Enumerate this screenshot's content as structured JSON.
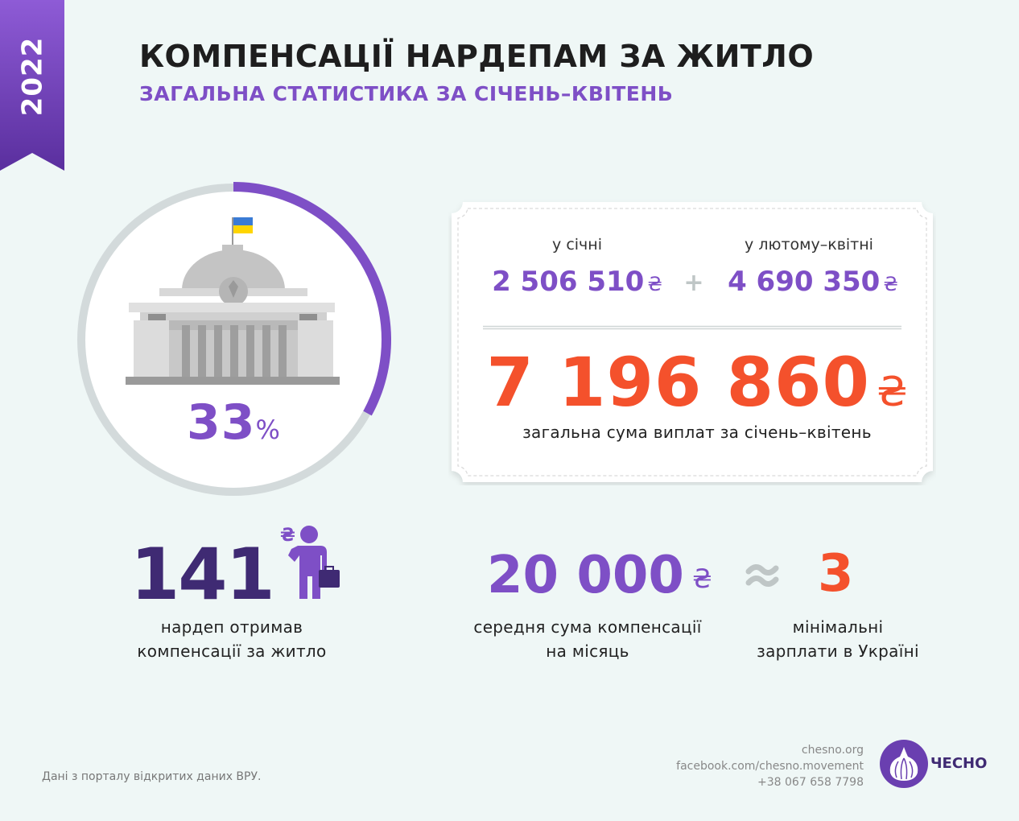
{
  "year": "2022",
  "header": {
    "title": "КОМПЕНСАЦІЇ НАРДЕПАМ ЗА ЖИТЛО",
    "subtitle": "ЗАГАЛЬНА СТАТИСТИКА ЗА СІЧЕНЬ–КВІТЕНЬ"
  },
  "share": {
    "value": "33",
    "unit": "%",
    "fraction": 0.33
  },
  "payments": {
    "january_label": "у січні",
    "january_amount": "2 506 510",
    "feb_apr_label": "у лютому–квітні",
    "feb_apr_amount": "4 690 350",
    "currency": "₴",
    "plus": "+",
    "total_amount": "7 196 860",
    "total_label": "загальна сума виплат за січень–квітень"
  },
  "stats": {
    "mps_count": "141",
    "mps_text_1": "нардеп отримав",
    "mps_text_2": "компенсації за житло",
    "avg_amount": "20 000",
    "avg_text_1": "середня сума компенсації",
    "avg_text_2": "на місяць",
    "approx_sign": "≈",
    "min_wages": "3",
    "min_text_1": "мінімальні",
    "min_text_2": "зарплати в Україні"
  },
  "footer": {
    "source": "Дані з порталу відкритих даних ВРУ.",
    "website": "chesno.org",
    "facebook": "facebook.com/chesno.movement",
    "phone": "+38 067 658 7798",
    "brand": "ЧЕСНО"
  },
  "icons": {
    "parliament": "parliament-building-icon",
    "person": "person-with-briefcase-icon",
    "approx": "approximately-equal-icon",
    "logo": "chesno-garlic-logo-icon"
  },
  "colors": {
    "background": "#eff7f6",
    "purple": "#7e4fc6",
    "dark_purple": "#3f2a73",
    "orange": "#f4512c",
    "gray_ring": "#d3dadb"
  }
}
